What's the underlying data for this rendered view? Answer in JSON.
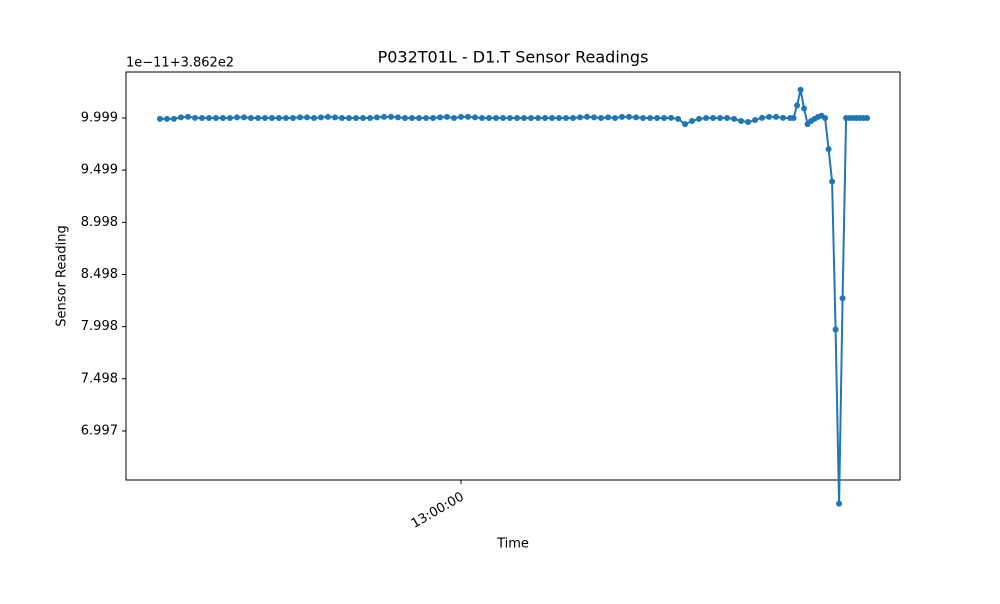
{
  "chart_data": {
    "type": "line",
    "title": "P032T01L - D1.T Sensor Readings",
    "x_label": "Time",
    "y_label": "Sensor Reading",
    "y_offset_label": "1e−11+3.862e2",
    "x": [
      694,
      696,
      698,
      700,
      702,
      704,
      706,
      708,
      710,
      712,
      714,
      716,
      718,
      720,
      722,
      724,
      726,
      728,
      730,
      732,
      734,
      736,
      738,
      740,
      742,
      744,
      746,
      748,
      750,
      752,
      754,
      756,
      758,
      760,
      762,
      764,
      766,
      768,
      770,
      772,
      774,
      776,
      778,
      780,
      782,
      784,
      786,
      788,
      790,
      792,
      794,
      796,
      798,
      800,
      802,
      804,
      806,
      808,
      810,
      812,
      814,
      816,
      818,
      820,
      822,
      824,
      826,
      828,
      830,
      832,
      834,
      836,
      838,
      840,
      842,
      844,
      846,
      848,
      850,
      852,
      854,
      856,
      858,
      860,
      862,
      864,
      866,
      868,
      870,
      872,
      874,
      875,
      876,
      877,
      878,
      879,
      880,
      881,
      882,
      883,
      884,
      885,
      886,
      887,
      888,
      889,
      890,
      891,
      892,
      893,
      894,
      895,
      896
    ],
    "series": [
      {
        "name": "D1.T",
        "color": "#1f77b4",
        "values": [
          9.99,
          9.99,
          9.99,
          10.005,
          10.01,
          10.0,
          9.999,
          9.999,
          9.999,
          9.999,
          9.999,
          10.005,
          10.005,
          9.999,
          9.999,
          9.999,
          9.999,
          9.999,
          9.999,
          9.999,
          10.005,
          10.005,
          9.999,
          10.005,
          10.01,
          10.005,
          9.999,
          9.999,
          9.999,
          9.999,
          9.999,
          10.005,
          10.01,
          10.01,
          10.005,
          9.999,
          9.999,
          9.999,
          9.999,
          9.999,
          10.005,
          10.01,
          9.999,
          10.01,
          10.01,
          10.005,
          9.999,
          9.999,
          9.999,
          9.999,
          9.999,
          9.999,
          9.999,
          9.999,
          9.999,
          9.999,
          9.999,
          9.999,
          9.999,
          9.999,
          10.005,
          10.01,
          10.005,
          9.999,
          10.005,
          9.999,
          10.01,
          10.01,
          10.005,
          9.999,
          9.999,
          9.999,
          9.999,
          10.0,
          9.99,
          9.94,
          9.97,
          9.99,
          9.999,
          9.999,
          9.999,
          9.999,
          9.99,
          9.97,
          9.96,
          9.98,
          10.0,
          10.01,
          10.01,
          10.0,
          9.999,
          9.999,
          10.12,
          10.27,
          10.09,
          9.94,
          9.97,
          9.99,
          10.01,
          10.02,
          9.999,
          9.7,
          9.39,
          7.97,
          6.3,
          8.27,
          9.999,
          9.999,
          9.999,
          9.999,
          9.999,
          9.999,
          9.999
        ]
      }
    ],
    "xlim": [
      684.3,
      905.4
    ],
    "xticks": [
      {
        "value": 780,
        "label": "13:00:00"
      }
    ],
    "ylim": [
      6.527,
      10.44
    ],
    "yticks": [
      9.999,
      9.499,
      8.998,
      8.498,
      7.998,
      7.498,
      6.997
    ],
    "grid": false
  }
}
